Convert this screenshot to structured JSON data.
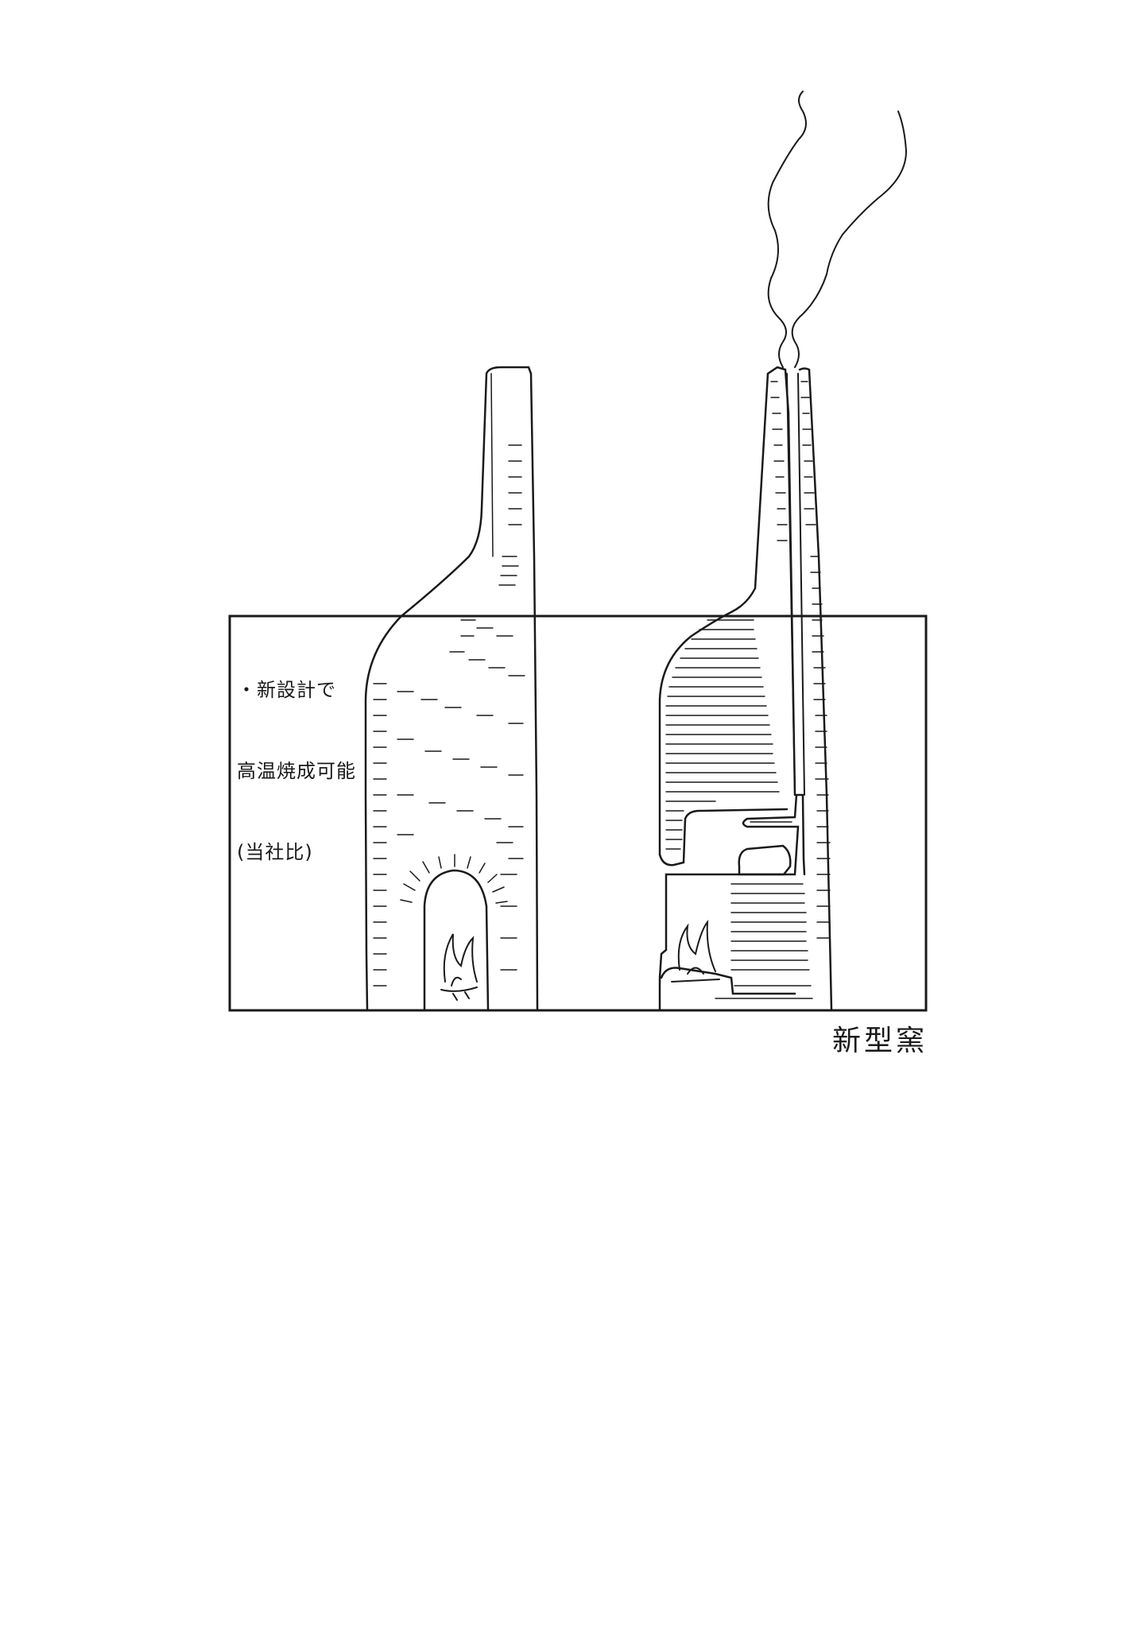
{
  "note": {
    "lines": [
      "・新設計で",
      "高温焼成可能",
      "(当社比)"
    ]
  },
  "caption": "新型窯",
  "colors": {
    "ink": "#1a1a1a",
    "paper": "#ffffff"
  }
}
